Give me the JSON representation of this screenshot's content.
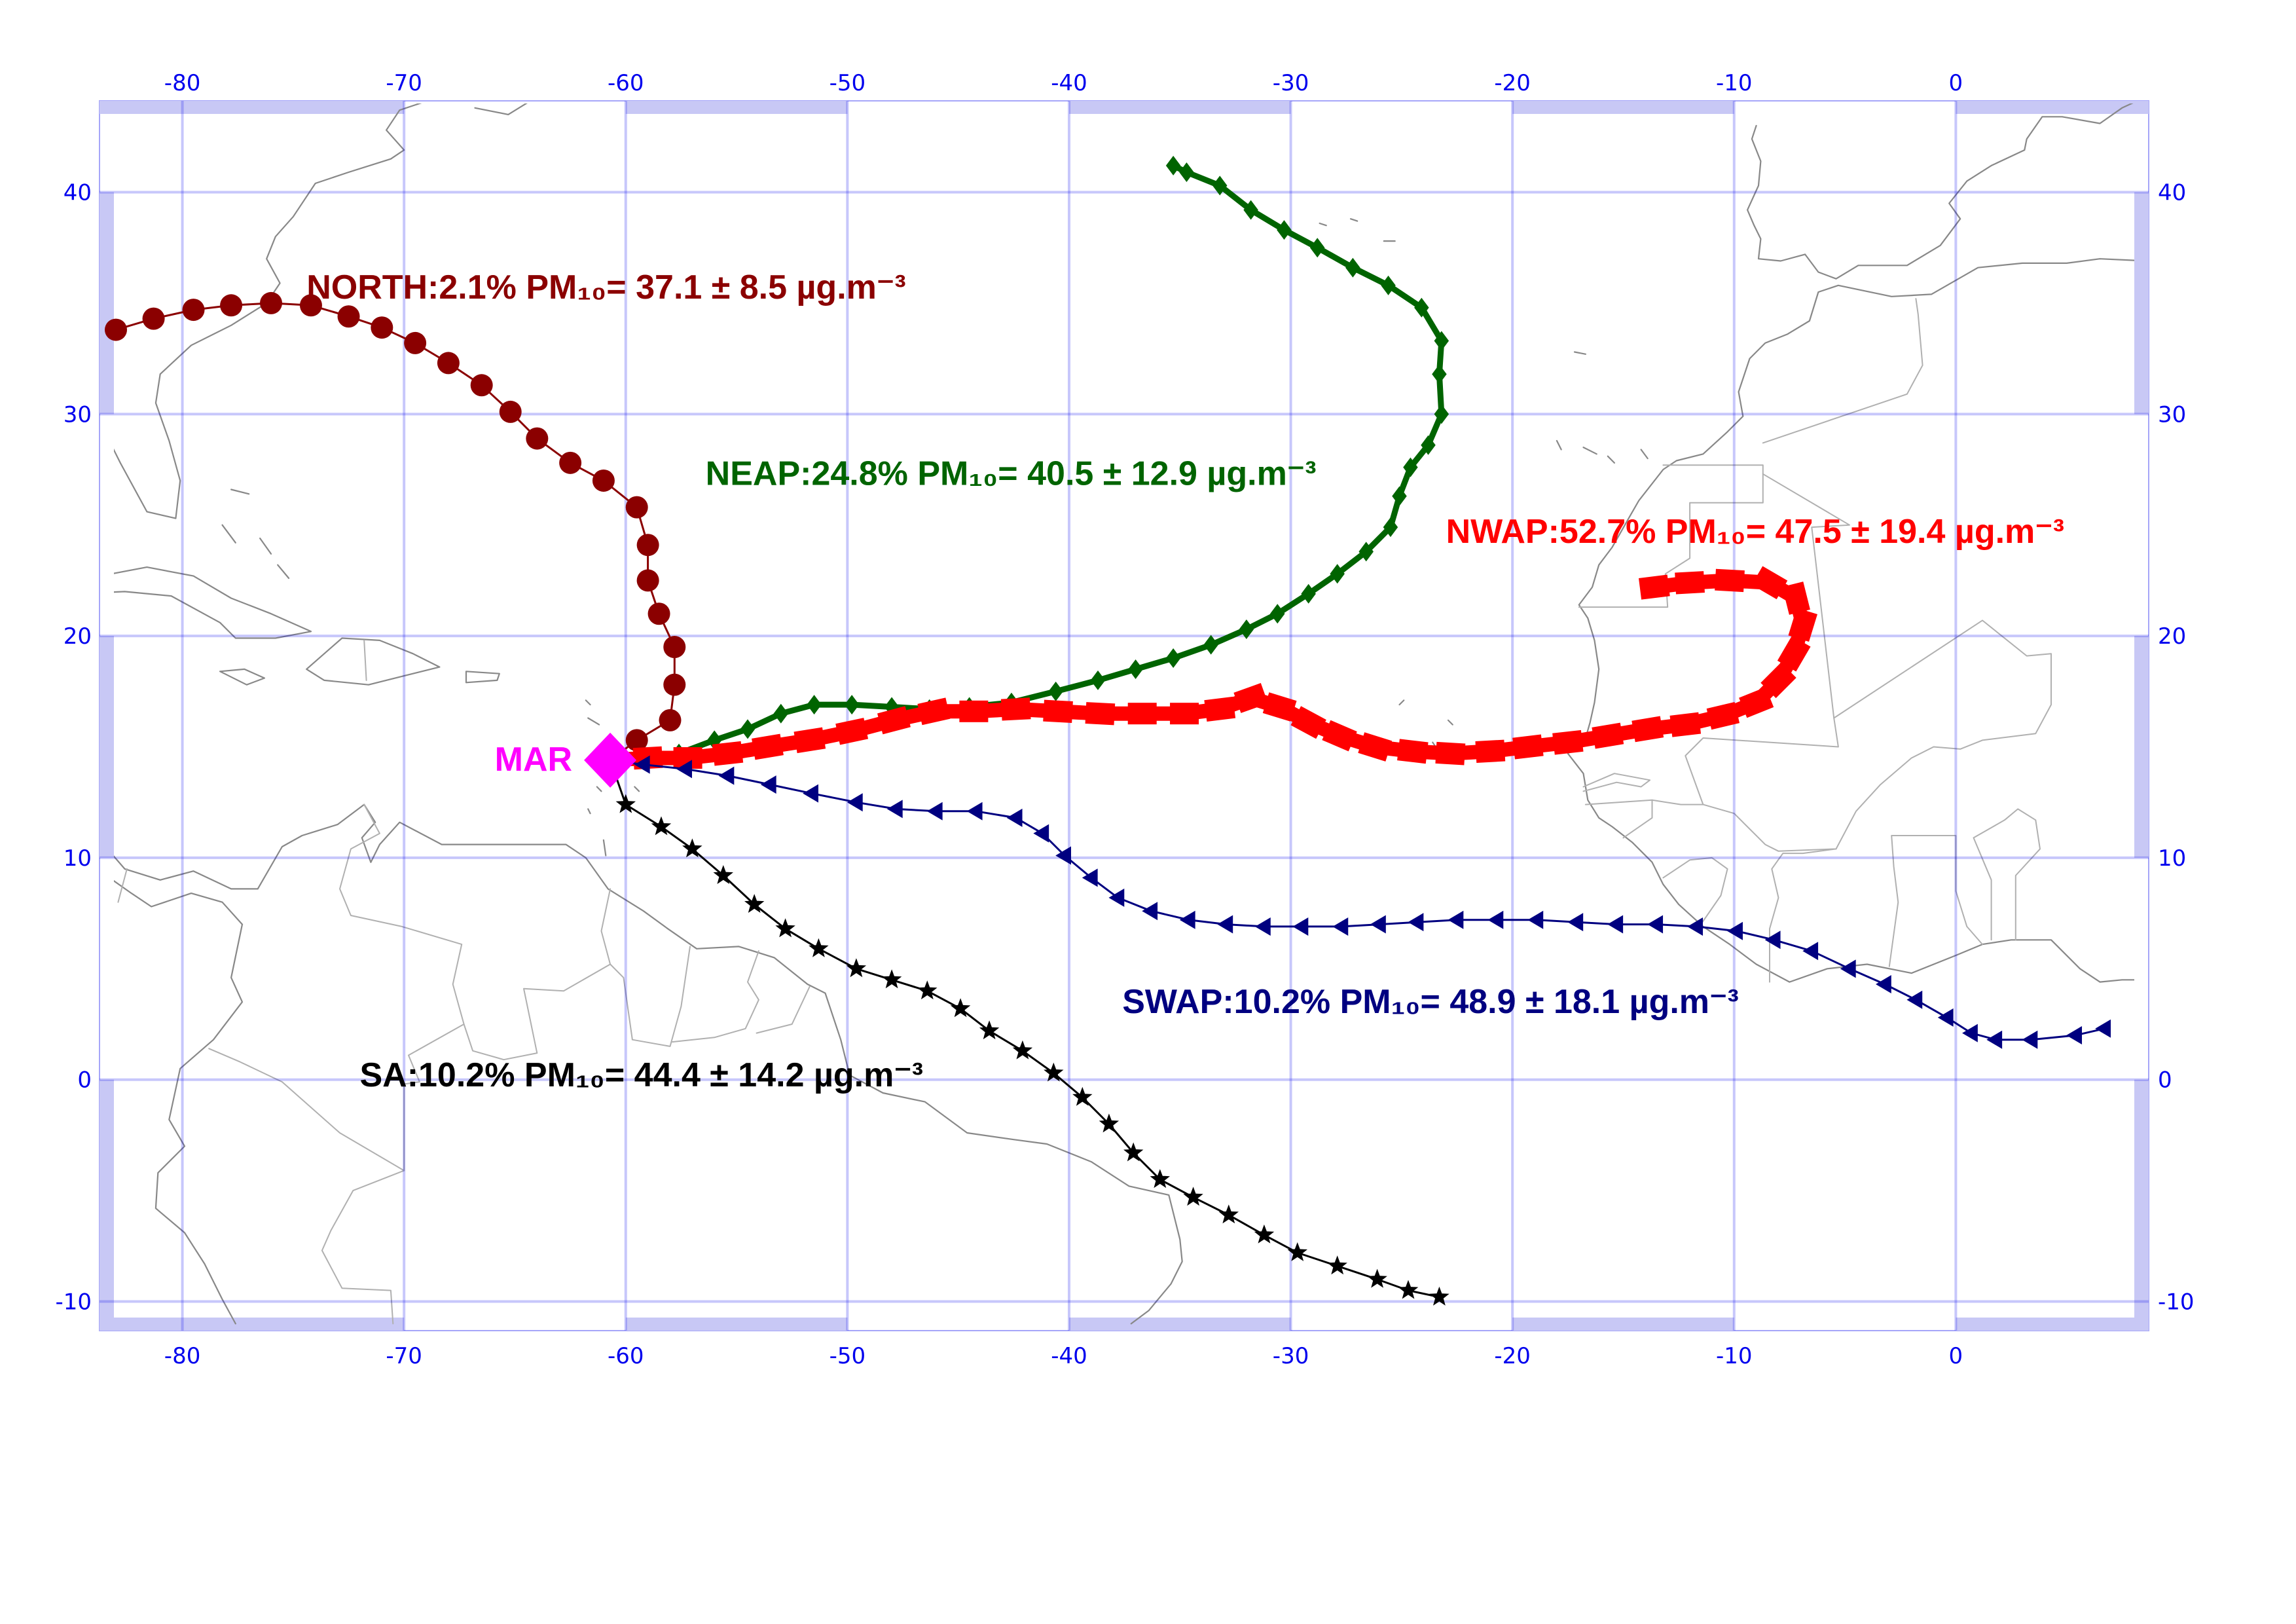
{
  "map": {
    "projection": "equirectangular",
    "lon_range": [
      -83,
      9
    ],
    "lat_range": [
      -11,
      44
    ],
    "lon_ticks": [
      -80,
      -70,
      -60,
      -50,
      -40,
      -30,
      -20,
      -10,
      0
    ],
    "lat_ticks": [
      -10,
      0,
      10,
      20,
      30,
      40
    ],
    "lon_tick_labels": [
      "-80",
      "-70",
      "-60",
      "-50",
      "-40",
      "-30",
      "-20",
      "-10",
      "0"
    ],
    "lat_tick_labels": [
      "-10",
      "0",
      "10",
      "20",
      "30",
      "40"
    ],
    "grid": true,
    "grid_color": "#0000ee",
    "frame_color": "#c8c8f5",
    "coast_color": "#888888",
    "border_color": "#b0b0b0"
  },
  "site": {
    "label": "MAR",
    "lon": -60.7,
    "lat": 14.4,
    "color": "#ff00ff"
  },
  "trajectories": [
    {
      "id": "north",
      "label": "NORTH:2.1% PM₁₀= 37.1 ± 8.5 µg.m⁻³",
      "color": "#8b0000",
      "marker": "circle",
      "points": [
        [
          -60.7,
          14.4
        ],
        [
          -59.5,
          15.3
        ],
        [
          -58.0,
          16.2
        ],
        [
          -57.8,
          17.8
        ],
        [
          -57.8,
          19.5
        ],
        [
          -58.5,
          21.0
        ],
        [
          -59.0,
          22.5
        ],
        [
          -59.0,
          24.1
        ],
        [
          -59.5,
          25.8
        ],
        [
          -61.0,
          27.0
        ],
        [
          -62.5,
          27.8
        ],
        [
          -64.0,
          28.9
        ],
        [
          -65.2,
          30.1
        ],
        [
          -66.5,
          31.3
        ],
        [
          -68.0,
          32.3
        ],
        [
          -69.5,
          33.2
        ],
        [
          -71.0,
          33.9
        ],
        [
          -72.5,
          34.4
        ],
        [
          -74.2,
          34.9
        ],
        [
          -76.0,
          35.0
        ],
        [
          -77.8,
          34.9
        ],
        [
          -79.5,
          34.7
        ],
        [
          -81.3,
          34.3
        ],
        [
          -83.0,
          33.8
        ]
      ],
      "label_lon": -74.4,
      "label_lat": 35.2
    },
    {
      "id": "neap",
      "label": "NEAP:24.8% PM₁₀= 40.5 ± 12.9 µg.m⁻³",
      "color": "#006400",
      "marker": "diamond",
      "points": [
        [
          -60.7,
          14.4
        ],
        [
          -59.2,
          14.5
        ],
        [
          -57.6,
          14.7
        ],
        [
          -56.0,
          15.3
        ],
        [
          -54.5,
          15.8
        ],
        [
          -53.0,
          16.5
        ],
        [
          -51.5,
          16.9
        ],
        [
          -49.8,
          16.9
        ],
        [
          -48.0,
          16.8
        ],
        [
          -46.3,
          16.7
        ],
        [
          -44.5,
          16.8
        ],
        [
          -42.6,
          17.0
        ],
        [
          -40.6,
          17.5
        ],
        [
          -38.7,
          18.0
        ],
        [
          -37.0,
          18.5
        ],
        [
          -35.3,
          19.0
        ],
        [
          -33.6,
          19.6
        ],
        [
          -32.0,
          20.3
        ],
        [
          -30.6,
          21.0
        ],
        [
          -29.2,
          21.9
        ],
        [
          -27.9,
          22.8
        ],
        [
          -26.6,
          23.8
        ],
        [
          -25.5,
          24.9
        ],
        [
          -25.1,
          26.3
        ],
        [
          -24.6,
          27.6
        ],
        [
          -23.8,
          28.6
        ],
        [
          -23.2,
          30.0
        ],
        [
          -23.3,
          31.8
        ],
        [
          -23.2,
          33.3
        ],
        [
          -24.1,
          34.8
        ],
        [
          -25.6,
          35.8
        ],
        [
          -27.2,
          36.6
        ],
        [
          -28.8,
          37.5
        ],
        [
          -30.3,
          38.3
        ],
        [
          -31.8,
          39.2
        ],
        [
          -33.2,
          40.3
        ],
        [
          -34.7,
          40.9
        ],
        [
          -35.3,
          41.2
        ]
      ],
      "label_lon": -56.4,
      "label_lat": 26.8
    },
    {
      "id": "nwap",
      "label": "NWAP:52.7% PM₁₀= 47.5 ± 19.4 µg.m⁻³",
      "color": "#ff0000",
      "marker": "square",
      "points": [
        [
          -60.7,
          14.4
        ],
        [
          -59.0,
          14.5
        ],
        [
          -57.2,
          14.5
        ],
        [
          -55.4,
          14.7
        ],
        [
          -53.6,
          15.0
        ],
        [
          -51.7,
          15.3
        ],
        [
          -49.8,
          15.7
        ],
        [
          -47.9,
          16.2
        ],
        [
          -46.1,
          16.6
        ],
        [
          -44.3,
          16.6
        ],
        [
          -42.4,
          16.7
        ],
        [
          -40.5,
          16.6
        ],
        [
          -38.6,
          16.5
        ],
        [
          -36.7,
          16.5
        ],
        [
          -34.8,
          16.5
        ],
        [
          -33.2,
          16.7
        ],
        [
          -31.8,
          17.2
        ],
        [
          -30.5,
          16.8
        ],
        [
          -29.2,
          16.1
        ],
        [
          -27.8,
          15.5
        ],
        [
          -26.2,
          15.0
        ],
        [
          -24.5,
          14.8
        ],
        [
          -22.8,
          14.7
        ],
        [
          -21.0,
          14.8
        ],
        [
          -19.3,
          15.0
        ],
        [
          -17.5,
          15.2
        ],
        [
          -15.7,
          15.5
        ],
        [
          -13.9,
          15.8
        ],
        [
          -12.2,
          16.0
        ],
        [
          -10.5,
          16.4
        ],
        [
          -9.0,
          17.0
        ],
        [
          -8.0,
          18.0
        ],
        [
          -7.3,
          19.2
        ],
        [
          -6.9,
          20.5
        ],
        [
          -7.2,
          21.7
        ],
        [
          -8.4,
          22.4
        ],
        [
          -10.2,
          22.5
        ],
        [
          -12.0,
          22.4
        ],
        [
          -13.6,
          22.2
        ]
      ],
      "label_lon": -23.0,
      "label_lat": 24.2
    },
    {
      "id": "swap",
      "label": "SWAP:10.2% PM₁₀= 48.9 ± 18.1 µg.m⁻³",
      "color": "#000080",
      "marker": "triangle",
      "points": [
        [
          -60.7,
          14.4
        ],
        [
          -59.2,
          14.2
        ],
        [
          -57.3,
          14.0
        ],
        [
          -55.4,
          13.7
        ],
        [
          -53.5,
          13.3
        ],
        [
          -51.6,
          12.9
        ],
        [
          -49.6,
          12.5
        ],
        [
          -47.8,
          12.2
        ],
        [
          -46.0,
          12.1
        ],
        [
          -44.2,
          12.1
        ],
        [
          -42.4,
          11.8
        ],
        [
          -41.2,
          11.1
        ],
        [
          -40.2,
          10.1
        ],
        [
          -39.0,
          9.1
        ],
        [
          -37.8,
          8.2
        ],
        [
          -36.3,
          7.6
        ],
        [
          -34.6,
          7.2
        ],
        [
          -32.9,
          7.0
        ],
        [
          -31.2,
          6.9
        ],
        [
          -29.5,
          6.9
        ],
        [
          -27.7,
          6.9
        ],
        [
          -26.0,
          7.0
        ],
        [
          -24.3,
          7.1
        ],
        [
          -22.5,
          7.2
        ],
        [
          -20.7,
          7.2
        ],
        [
          -18.9,
          7.2
        ],
        [
          -17.1,
          7.1
        ],
        [
          -15.3,
          7.0
        ],
        [
          -13.5,
          7.0
        ],
        [
          -11.7,
          6.9
        ],
        [
          -9.9,
          6.7
        ],
        [
          -8.2,
          6.3
        ],
        [
          -6.5,
          5.8
        ],
        [
          -4.8,
          5.0
        ],
        [
          -3.2,
          4.3
        ],
        [
          -1.8,
          3.6
        ],
        [
          -0.4,
          2.8
        ],
        [
          0.7,
          2.1
        ],
        [
          1.8,
          1.8
        ],
        [
          3.4,
          1.8
        ],
        [
          5.4,
          2.0
        ],
        [
          6.7,
          2.3
        ]
      ],
      "label_lon": -37.6,
      "label_lat": 3.0
    },
    {
      "id": "sa",
      "label": "SA:10.2% PM₁₀= 44.4 ± 14.2 µg.m⁻³",
      "color": "#000000",
      "marker": "star",
      "points": [
        [
          -60.7,
          14.4
        ],
        [
          -60.0,
          12.4
        ],
        [
          -58.4,
          11.4
        ],
        [
          -57.0,
          10.4
        ],
        [
          -55.6,
          9.2
        ],
        [
          -54.2,
          7.9
        ],
        [
          -52.8,
          6.8
        ],
        [
          -51.3,
          5.9
        ],
        [
          -49.6,
          5.0
        ],
        [
          -48.0,
          4.5
        ],
        [
          -46.4,
          4.0
        ],
        [
          -44.9,
          3.2
        ],
        [
          -43.6,
          2.2
        ],
        [
          -42.1,
          1.3
        ],
        [
          -40.7,
          0.3
        ],
        [
          -39.4,
          -0.8
        ],
        [
          -38.2,
          -2.0
        ],
        [
          -37.1,
          -3.3
        ],
        [
          -35.9,
          -4.5
        ],
        [
          -34.4,
          -5.3
        ],
        [
          -32.8,
          -6.1
        ],
        [
          -31.2,
          -7.0
        ],
        [
          -29.7,
          -7.8
        ],
        [
          -27.9,
          -8.4
        ],
        [
          -26.1,
          -9.0
        ],
        [
          -24.7,
          -9.5
        ],
        [
          -23.3,
          -9.8
        ]
      ],
      "label_lon": -72.0,
      "label_lat": -0.3
    }
  ]
}
